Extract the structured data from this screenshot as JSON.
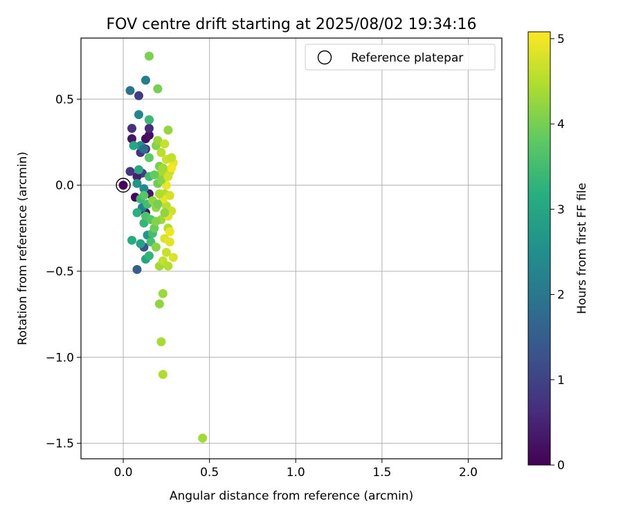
{
  "chart_data": {
    "type": "scatter",
    "title": "FOV centre drift starting at 2025/08/02 19:34:16",
    "xlabel": "Angular distance from reference (arcmin)",
    "ylabel": "Rotation from reference (arcmin)",
    "colorbar_label": "Hours from first FF file",
    "colormap": "viridis",
    "xlim": [
      -0.245,
      2.195
    ],
    "ylim": [
      -1.59,
      0.855
    ],
    "clim": [
      0,
      5.08
    ],
    "xticks": [
      0.0,
      0.5,
      1.0,
      1.5,
      2.0
    ],
    "xtick_labels": [
      "0.0",
      "0.5",
      "1.0",
      "1.5",
      "2.0"
    ],
    "yticks": [
      0.5,
      0.0,
      -0.5,
      -1.0,
      -1.5
    ],
    "ytick_labels": [
      "0.5",
      "0.0",
      "−0.5",
      "−1.0",
      "−1.5"
    ],
    "cticks": [
      0,
      1,
      2,
      3,
      4,
      5
    ],
    "ctick_labels": [
      "0",
      "1",
      "2",
      "3",
      "4",
      "5"
    ],
    "grid": true,
    "legend": {
      "placement": "top-right",
      "entries": [
        "Reference platepar"
      ]
    },
    "reference_point": {
      "x": 0.0,
      "y": 0.0,
      "label": "Reference platepar"
    },
    "points": [
      [
        0.0,
        0.0,
        0.05
      ],
      [
        0.07,
        -0.07,
        0.1
      ],
      [
        0.13,
        0.27,
        0.15
      ],
      [
        0.05,
        0.27,
        0.3
      ],
      [
        0.15,
        0.29,
        0.25
      ],
      [
        0.11,
        0.22,
        0.4
      ],
      [
        0.15,
        0.33,
        0.6
      ],
      [
        0.05,
        0.33,
        0.7
      ],
      [
        0.09,
        0.52,
        0.9
      ],
      [
        0.04,
        0.08,
        0.8
      ],
      [
        0.1,
        0.07,
        0.85
      ],
      [
        0.15,
        0.38,
        0.5
      ],
      [
        0.13,
        0.21,
        0.55
      ],
      [
        0.12,
        -0.36,
        1.3
      ],
      [
        0.08,
        -0.49,
        1.5
      ],
      [
        0.1,
        0.19,
        0.75
      ],
      [
        0.13,
        -0.16,
        0.2
      ],
      [
        0.11,
        0.07,
        0.95
      ],
      [
        0.15,
        -0.05,
        0.35
      ],
      [
        0.08,
        0.05,
        0.45
      ],
      [
        0.04,
        0.55,
        1.9
      ],
      [
        0.13,
        0.61,
        2.1
      ],
      [
        0.09,
        0.41,
        2.3
      ],
      [
        0.1,
        0.23,
        2.5
      ],
      [
        0.12,
        0.21,
        1.8
      ],
      [
        0.08,
        0.01,
        2.6
      ],
      [
        0.12,
        -0.02,
        2.4
      ],
      [
        0.11,
        -0.13,
        2.2
      ],
      [
        0.14,
        -0.29,
        2.7
      ],
      [
        0.1,
        -0.34,
        2.9
      ],
      [
        0.05,
        -0.32,
        3.1
      ],
      [
        0.13,
        -0.43,
        2.95
      ],
      [
        0.15,
        -0.41,
        3.3
      ],
      [
        0.06,
        0.23,
        3.0
      ],
      [
        0.08,
        -0.16,
        3.2
      ],
      [
        0.1,
        -0.08,
        3.4
      ],
      [
        0.14,
        -0.11,
        3.5
      ],
      [
        0.15,
        0.05,
        3.45
      ],
      [
        0.12,
        -0.22,
        3.35
      ],
      [
        0.16,
        -0.33,
        3.55
      ],
      [
        0.09,
        0.09,
        3.05
      ],
      [
        0.13,
        -0.18,
        3.6
      ],
      [
        0.17,
        -0.28,
        3.5
      ],
      [
        0.16,
        -0.2,
        3.7
      ],
      [
        0.12,
        -0.06,
        3.75
      ],
      [
        0.15,
        0.38,
        3.4
      ],
      [
        0.15,
        0.16,
        3.8
      ],
      [
        0.18,
        -0.25,
        3.9
      ],
      [
        0.2,
        0.56,
        4.0
      ],
      [
        0.15,
        0.75,
        4.05
      ],
      [
        0.19,
        0.23,
        4.1
      ],
      [
        0.21,
        0.11,
        4.0
      ],
      [
        0.2,
        0.01,
        3.95
      ],
      [
        0.17,
        -0.09,
        4.2
      ],
      [
        0.19,
        -0.13,
        4.25
      ],
      [
        0.22,
        -0.2,
        4.3
      ],
      [
        0.19,
        -0.36,
        4.15
      ],
      [
        0.21,
        -0.47,
        4.35
      ],
      [
        0.23,
        -0.63,
        4.3
      ],
      [
        0.21,
        -0.69,
        4.2
      ],
      [
        0.22,
        -0.91,
        4.4
      ],
      [
        0.23,
        -1.1,
        4.45
      ],
      [
        0.46,
        -1.47,
        4.35
      ],
      [
        0.26,
        0.32,
        4.25
      ],
      [
        0.2,
        0.26,
        4.3
      ],
      [
        0.22,
        0.07,
        4.4
      ],
      [
        0.24,
        -0.05,
        4.5
      ],
      [
        0.25,
        -0.12,
        4.55
      ],
      [
        0.26,
        -0.25,
        4.45
      ],
      [
        0.23,
        -0.44,
        4.6
      ],
      [
        0.26,
        -0.47,
        4.5
      ],
      [
        0.25,
        0.15,
        4.7
      ],
      [
        0.27,
        0.08,
        4.6
      ],
      [
        0.24,
        0.24,
        4.65
      ],
      [
        0.27,
        -0.06,
        4.75
      ],
      [
        0.28,
        -0.15,
        4.7
      ],
      [
        0.24,
        -0.31,
        4.8
      ],
      [
        0.27,
        -0.33,
        4.85
      ],
      [
        0.29,
        -0.42,
        4.8
      ],
      [
        0.29,
        0.13,
        4.9
      ],
      [
        0.28,
        0.1,
        5.0
      ],
      [
        0.25,
        0.0,
        4.95
      ],
      [
        0.23,
        -0.08,
        4.9
      ],
      [
        0.26,
        -0.18,
        4.85
      ],
      [
        0.25,
        -0.39,
        4.65
      ],
      [
        0.27,
        -0.27,
        4.95
      ],
      [
        0.22,
        0.19,
        4.55
      ],
      [
        0.28,
        0.16,
        4.6
      ],
      [
        0.2,
        -0.11,
        4.0
      ],
      [
        0.22,
        0.03,
        4.15
      ],
      [
        0.24,
        -0.16,
        4.2
      ],
      [
        0.18,
        0.06,
        3.85
      ],
      [
        0.23,
        0.1,
        4.35
      ],
      [
        0.21,
        -0.05,
        4.45
      ],
      [
        0.26,
        0.05,
        4.75
      ],
      [
        0.19,
        -0.21,
        4.1
      ]
    ]
  }
}
